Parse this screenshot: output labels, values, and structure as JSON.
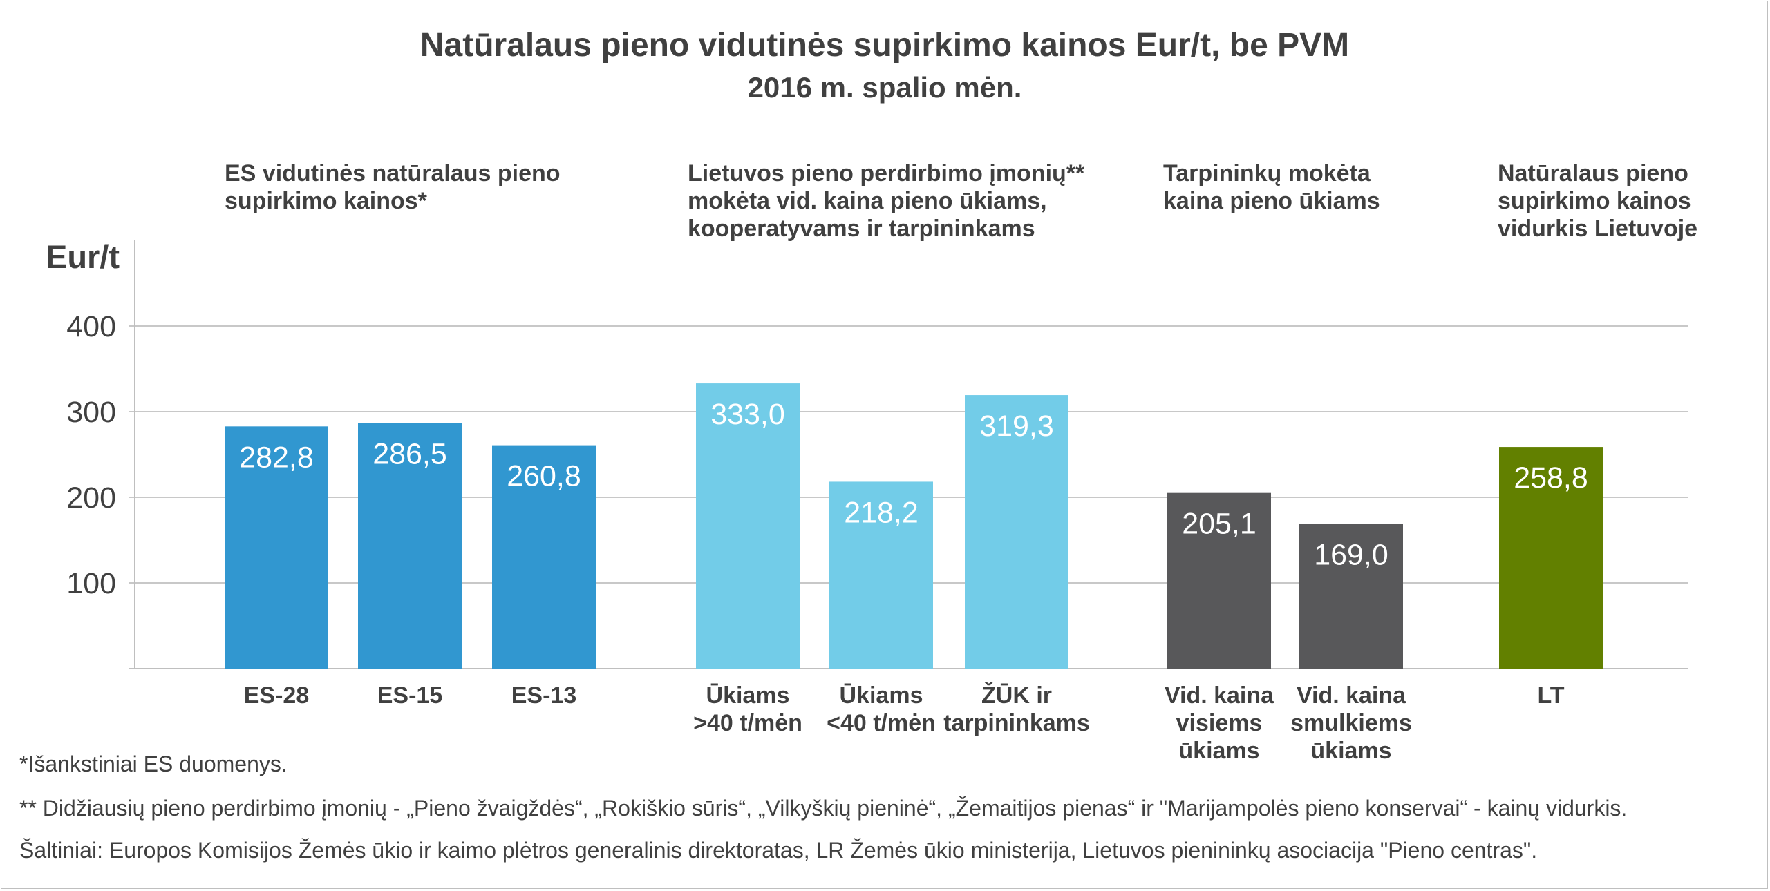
{
  "chart_data": {
    "type": "bar",
    "title": "Natūralaus pieno vidutinės supirkimo kainos Eur/t, be PVM",
    "subtitle": "2016 m. spalio mėn.",
    "ylabel": "Eur/t",
    "ylim": [
      0,
      400
    ],
    "yticks": [
      "100",
      "200",
      "300",
      "400"
    ],
    "grid": true,
    "groups": [
      {
        "label_lines": [
          "ES vidutinės natūralaus pieno",
          "supirkimo kainos*"
        ],
        "color": "#3197d0",
        "bars": [
          {
            "category_lines": [
              "ES-28"
            ],
            "value": 282.8,
            "label": "282,8"
          },
          {
            "category_lines": [
              "ES-15"
            ],
            "value": 286.5,
            "label": "286,5"
          },
          {
            "category_lines": [
              "ES-13"
            ],
            "value": 260.8,
            "label": "260,8"
          }
        ]
      },
      {
        "label_lines": [
          "Lietuvos pieno perdirbimo įmonių**",
          "mokėta vid. kaina pieno ūkiams,",
          "kooperatyvams ir tarpininkams"
        ],
        "color": "#72cce8",
        "bars": [
          {
            "category_lines": [
              "Ūkiams",
              ">40 t/mėn"
            ],
            "value": 333.0,
            "label": "333,0"
          },
          {
            "category_lines": [
              "Ūkiams",
              "<40 t/mėn"
            ],
            "value": 218.2,
            "label": "218,2"
          },
          {
            "category_lines": [
              "ŽŪK ir",
              "tarpininkams"
            ],
            "value": 319.3,
            "label": "319,3"
          }
        ]
      },
      {
        "label_lines": [
          "Tarpininkų mokėta",
          "kaina pieno ūkiams"
        ],
        "color": "#58585a",
        "bars": [
          {
            "category_lines": [
              "Vid. kaina",
              "visiems",
              "ūkiams"
            ],
            "value": 205.1,
            "label": "205,1"
          },
          {
            "category_lines": [
              "Vid. kaina",
              "smulkiems",
              "ūkiams"
            ],
            "value": 169.0,
            "label": "169,0"
          }
        ]
      },
      {
        "label_lines": [
          "Natūralaus pieno",
          "supirkimo kainos",
          "vidurkis Lietuvoje"
        ],
        "color": "#628000",
        "bars": [
          {
            "category_lines": [
              "LT"
            ],
            "value": 258.8,
            "label": "258,8"
          }
        ]
      }
    ]
  },
  "notes": {
    "n1": "*Išankstiniai ES duomenys.",
    "n2": "** Didžiausių pieno perdirbimo įmonių - „Pieno žvaigždės“, „Rokiškio sūris“, „Vilkyškių pieninė“, „Žemaitijos pienas“ ir \"Marijampolės pieno konservai“ - kainų vidurkis.",
    "n3": "Šaltiniai: Europos Komisijos Žemės ūkio ir kaimo plėtros generalinis direktoratas, LR Žemės ūkio ministerija, Lietuvos pienininkų asociacija \"Pieno centras\"."
  }
}
